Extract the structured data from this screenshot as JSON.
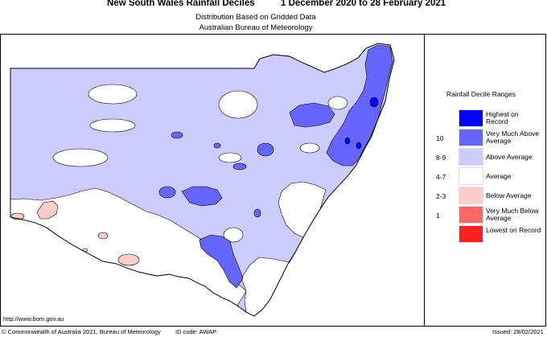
{
  "title": "New South Wales Rainfall Deciles",
  "period": "1 December 2020 to 28 February 2021",
  "subtitle_line1": "Distribution Based on Gridded Data",
  "subtitle_line2": "Australian Bureau of Meteorology",
  "website": "http://www.bom.gov.au",
  "copyright": "© Commonwealth of Australia 2021, Bureau of Meteorology",
  "id_code": "ID code: AWAP",
  "issued": "Issued: 28/02/2021",
  "legend": {
    "title": "Rainfall Decile Ranges",
    "items": [
      {
        "label": "Highest on Record",
        "decile": "",
        "color": "#0000ff"
      },
      {
        "label": "Very Much Above Average",
        "decile": "10",
        "color": "#6666ff"
      },
      {
        "label": "Above Average",
        "decile": "8-9",
        "color": "#ccccff"
      },
      {
        "label": "Average",
        "decile": "4-7",
        "color": "#ffffff"
      },
      {
        "label": "Below Average",
        "decile": "2-3",
        "color": "#ffcccc"
      },
      {
        "label": "Very Much Below Average",
        "decile": "1",
        "color": "#ff6666"
      },
      {
        "label": "Lowest on Record",
        "decile": "",
        "color": "#ff2020"
      }
    ]
  },
  "map_colors": {
    "above_average": "#ccccff",
    "very_much_above": "#6666ff",
    "highest_on_record": "#0000ff",
    "below_average": "#ffcccc",
    "average": "#ffffff"
  }
}
